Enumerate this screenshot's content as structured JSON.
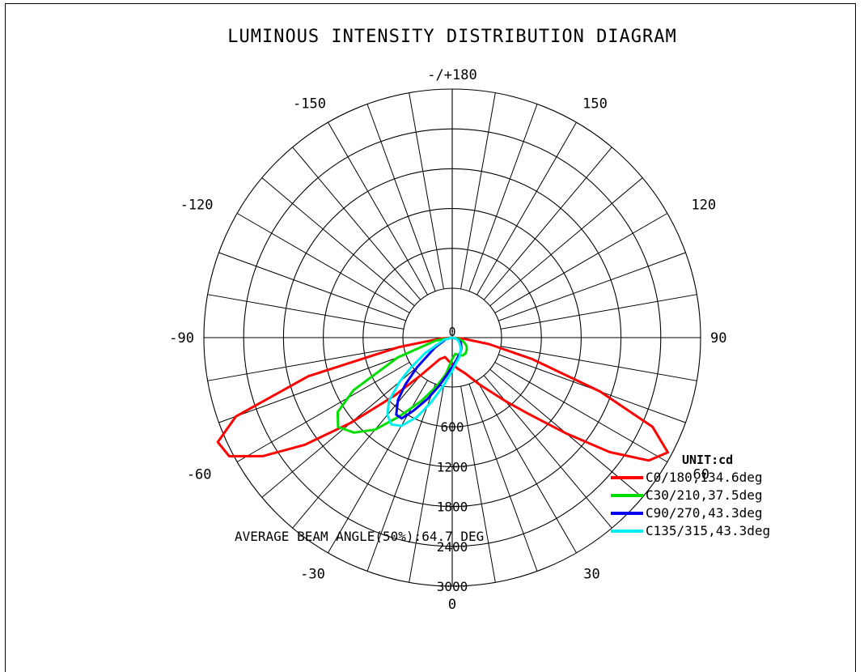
{
  "chart_data": {
    "type": "polar",
    "title": "LUMINOUS INTENSITY DISTRIBUTION DIAGRAM",
    "angle_labels": [
      {
        "angle": 180,
        "text": "-/+180"
      },
      {
        "angle": -150,
        "text": "-150"
      },
      {
        "angle": 150,
        "text": "150"
      },
      {
        "angle": -120,
        "text": "-120"
      },
      {
        "angle": 120,
        "text": "120"
      },
      {
        "angle": -90,
        "text": "-90"
      },
      {
        "angle": 90,
        "text": "90"
      },
      {
        "angle": -60,
        "text": "-60"
      },
      {
        "angle": 60,
        "text": "60"
      },
      {
        "angle": -30,
        "text": "-30"
      },
      {
        "angle": 30,
        "text": "30"
      },
      {
        "angle": 0,
        "text": "0"
      }
    ],
    "center_label": "0",
    "radial_ticks": [
      600,
      1200,
      1800,
      2400,
      3000
    ],
    "radial_tick_labels": [
      "600",
      "1200",
      "1800",
      "2400",
      "3000"
    ],
    "rmax": 3000,
    "grid": true,
    "unit_label": "UNIT:cd",
    "footer": "AVERAGE BEAM ANGLE(50%):64.7 DEG",
    "legend_position": "bottom-right",
    "series": [
      {
        "name": "C0/180,134.6deg",
        "color": "#ff0000",
        "points": [
          [
            -90,
            0
          ],
          [
            -85,
            150
          ],
          [
            -80,
            650
          ],
          [
            -75,
            1800
          ],
          [
            -70,
            2780
          ],
          [
            -66,
            3100
          ],
          [
            -62,
            3050
          ],
          [
            -58,
            2700
          ],
          [
            -54,
            2200
          ],
          [
            -50,
            1600
          ],
          [
            -45,
            1000
          ],
          [
            -40,
            600
          ],
          [
            -30,
            300
          ],
          [
            -20,
            250
          ],
          [
            -10,
            280
          ],
          [
            0,
            320
          ],
          [
            10,
            380
          ],
          [
            20,
            460
          ],
          [
            30,
            650
          ],
          [
            40,
            1000
          ],
          [
            45,
            1300
          ],
          [
            50,
            1800
          ],
          [
            54,
            2350
          ],
          [
            58,
            2800
          ],
          [
            62,
            2950
          ],
          [
            66,
            2650
          ],
          [
            70,
            1900
          ],
          [
            75,
            1000
          ],
          [
            80,
            450
          ],
          [
            85,
            130
          ],
          [
            90,
            0
          ]
        ]
      },
      {
        "name": "C30/210,37.5deg",
        "color": "#00dd00",
        "points": [
          [
            -90,
            0
          ],
          [
            -80,
            200
          ],
          [
            -70,
            700
          ],
          [
            -62,
            1350
          ],
          [
            -57,
            1650
          ],
          [
            -52,
            1750
          ],
          [
            -46,
            1650
          ],
          [
            -40,
            1450
          ],
          [
            -34,
            1150
          ],
          [
            -26,
            850
          ],
          [
            -18,
            620
          ],
          [
            -10,
            450
          ],
          [
            0,
            260
          ],
          [
            10,
            200
          ],
          [
            20,
            220
          ],
          [
            30,
            250
          ],
          [
            40,
            250
          ],
          [
            50,
            230
          ],
          [
            60,
            200
          ],
          [
            70,
            150
          ],
          [
            80,
            80
          ],
          [
            90,
            0
          ]
        ]
      },
      {
        "name": "C90/270,43.3deg",
        "color": "#0000ee",
        "points": [
          [
            -90,
            0
          ],
          [
            -75,
            80
          ],
          [
            -60,
            240
          ],
          [
            -50,
            550
          ],
          [
            -45,
            800
          ],
          [
            -41,
            1000
          ],
          [
            -36,
            1150
          ],
          [
            -32,
            1150
          ],
          [
            -28,
            1000
          ],
          [
            -22,
            800
          ],
          [
            -15,
            600
          ],
          [
            -8,
            450
          ],
          [
            0,
            350
          ],
          [
            10,
            280
          ],
          [
            20,
            230
          ],
          [
            30,
            200
          ],
          [
            40,
            170
          ],
          [
            50,
            140
          ],
          [
            60,
            120
          ],
          [
            75,
            60
          ],
          [
            90,
            0
          ]
        ]
      },
      {
        "name": "C135/315,43.3deg",
        "color": "#00eeee",
        "points": [
          [
            -90,
            0
          ],
          [
            -75,
            100
          ],
          [
            -60,
            380
          ],
          [
            -54,
            620
          ],
          [
            -50,
            830
          ],
          [
            -45,
            1080
          ],
          [
            -40,
            1220
          ],
          [
            -35,
            1280
          ],
          [
            -30,
            1230
          ],
          [
            -24,
            1050
          ],
          [
            -18,
            820
          ],
          [
            -10,
            580
          ],
          [
            0,
            400
          ],
          [
            10,
            300
          ],
          [
            20,
            250
          ],
          [
            30,
            200
          ],
          [
            40,
            160
          ],
          [
            50,
            120
          ],
          [
            65,
            80
          ],
          [
            80,
            40
          ],
          [
            90,
            0
          ]
        ]
      }
    ]
  }
}
